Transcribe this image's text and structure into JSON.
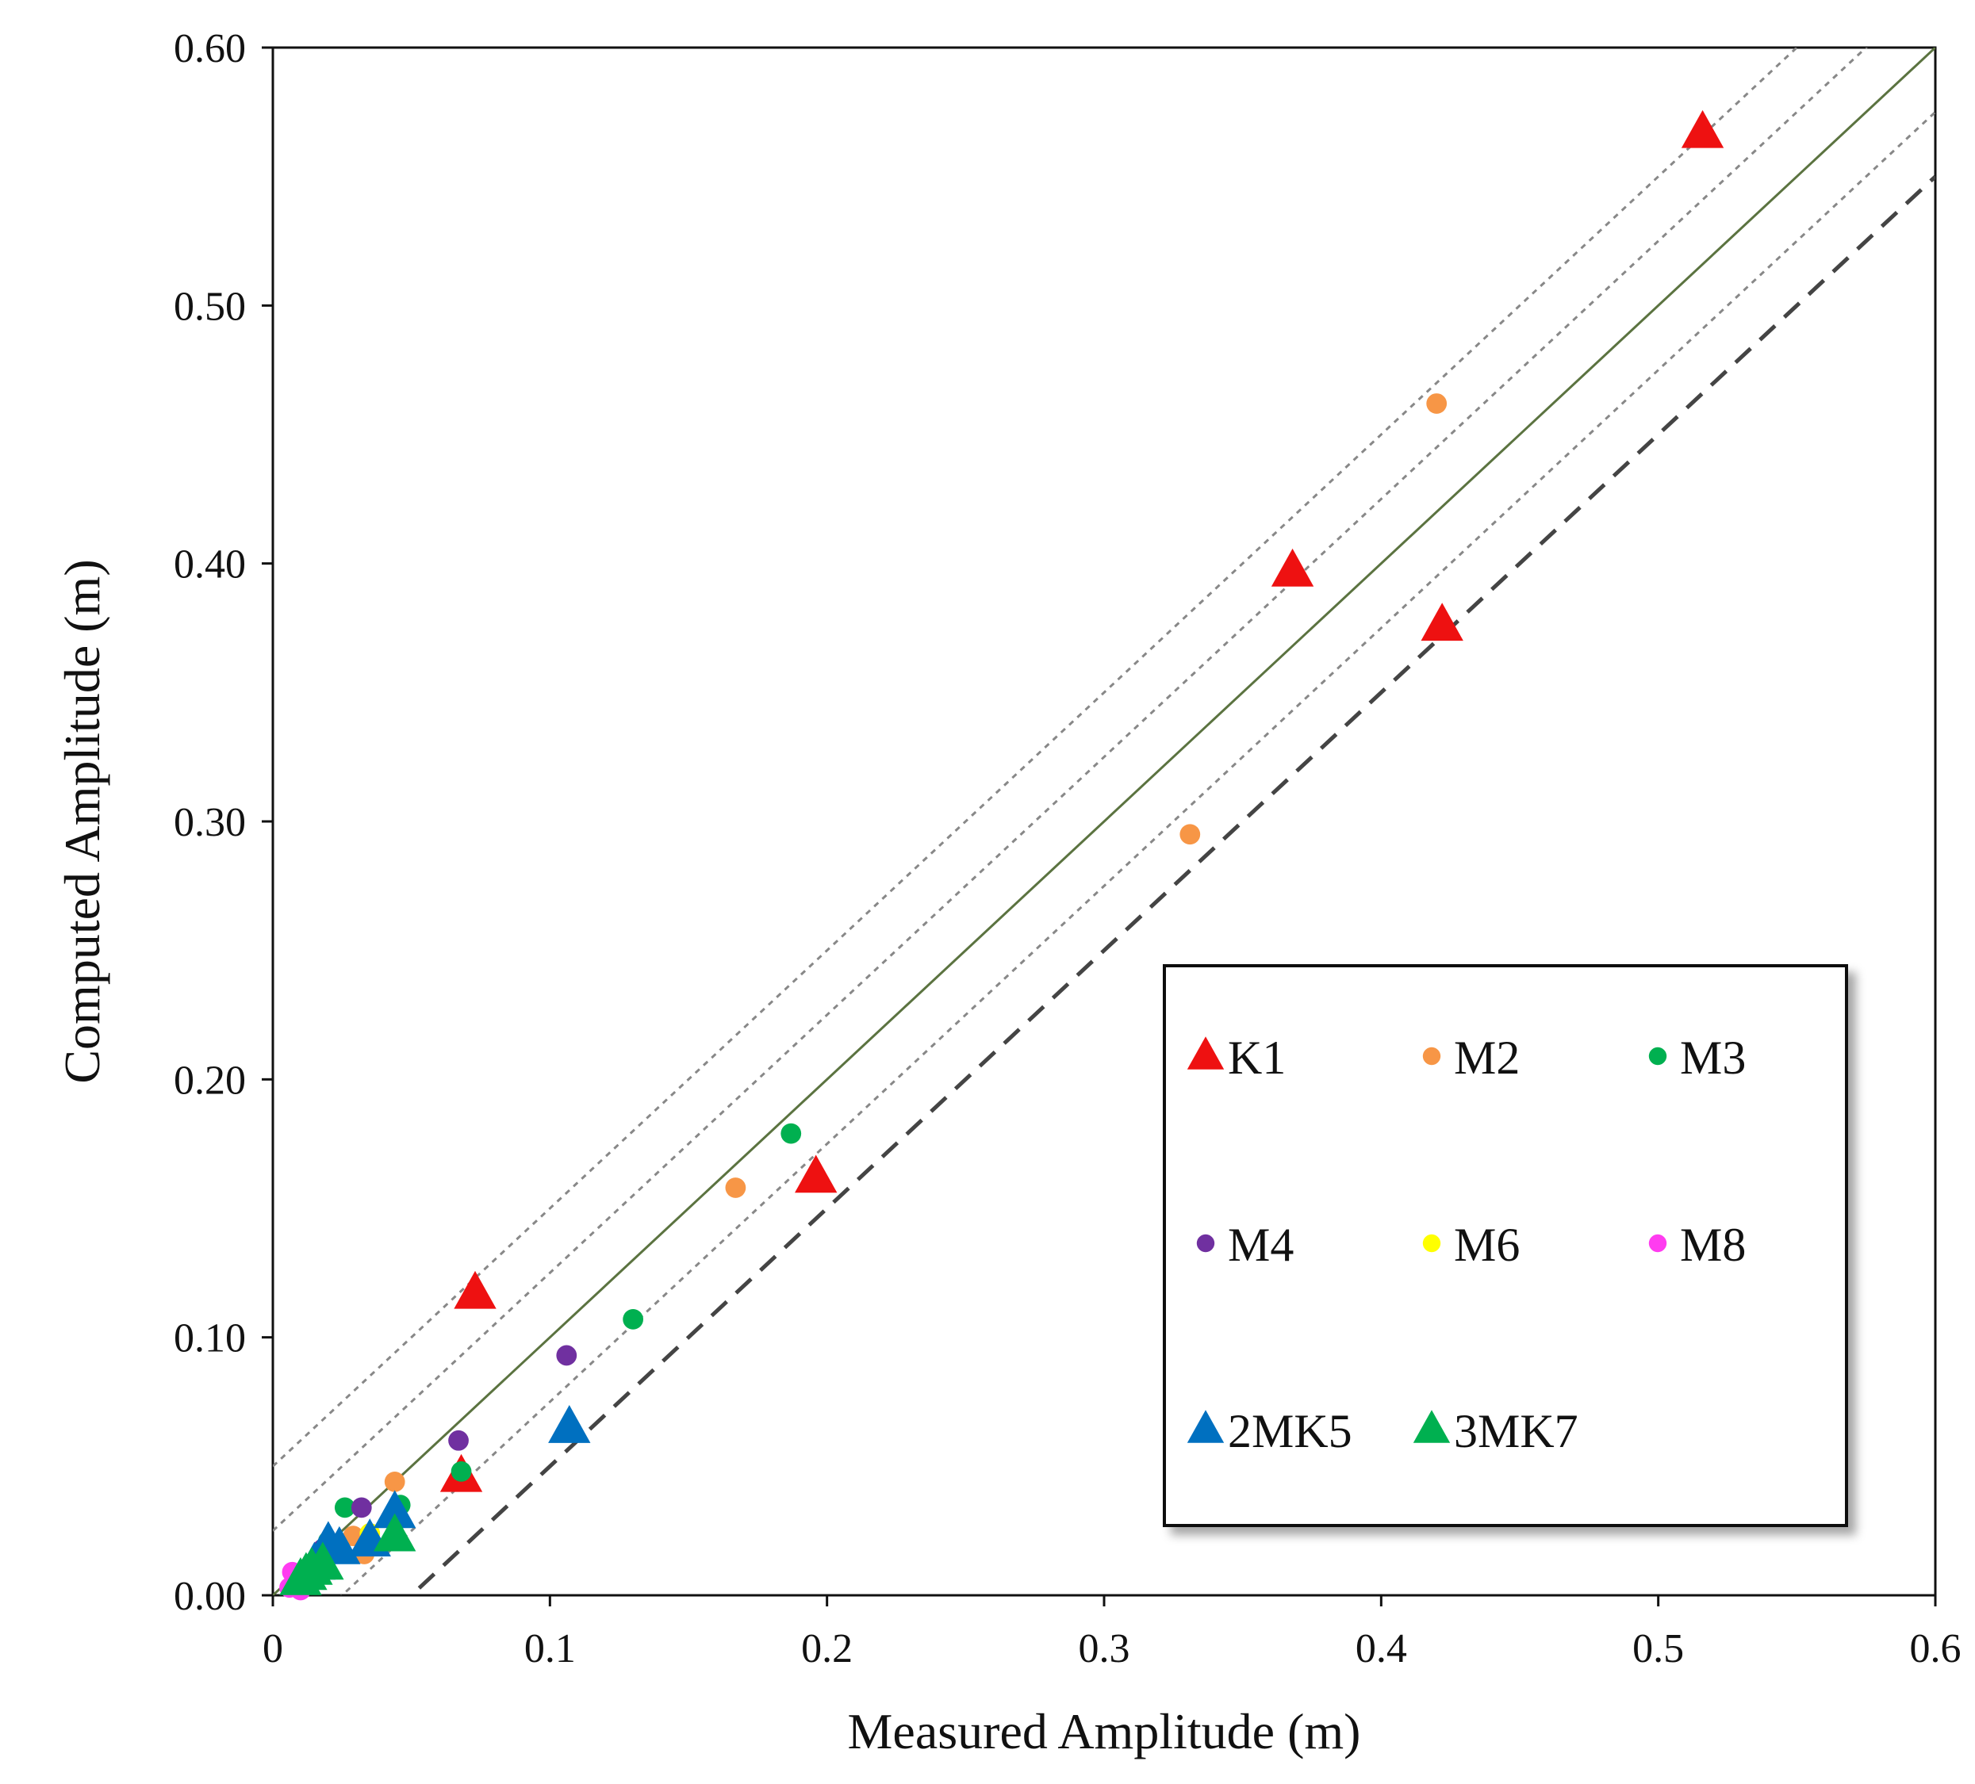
{
  "chart_data": {
    "type": "scatter",
    "xlabel": "Measured Amplitude (m)",
    "ylabel": "Computed Amplitude (m)",
    "xlim": [
      0,
      0.6
    ],
    "ylim": [
      0,
      0.6
    ],
    "x_ticks": [
      "0",
      "0.1",
      "0.2",
      "0.3",
      "0.4",
      "0.5",
      "0.6"
    ],
    "y_ticks": [
      "0.00",
      "0.10",
      "0.20",
      "0.30",
      "0.40",
      "0.50",
      "0.60"
    ],
    "grid": false,
    "legend_position": "lower-right",
    "reference_lines": [
      {
        "name": "1:1 line",
        "offset": 0,
        "style": "solid",
        "color": "#5b7340"
      },
      {
        "name": "+0.05 m",
        "offset": 0.05,
        "style": "dotted",
        "color": "#888888"
      },
      {
        "name": "+0.025 m",
        "offset": 0.025,
        "style": "dotted",
        "color": "#888888"
      },
      {
        "name": "-0.025 m",
        "offset": -0.025,
        "style": "dotted",
        "color": "#888888"
      },
      {
        "name": "-0.05 m",
        "offset": -0.05,
        "style": "dashed",
        "color": "#444444"
      }
    ],
    "series": [
      {
        "name": "K1",
        "marker": "triangle",
        "color": "#ee1111",
        "points": [
          [
            0.516,
            0.567
          ],
          [
            0.368,
            0.397
          ],
          [
            0.422,
            0.376
          ],
          [
            0.196,
            0.162
          ],
          [
            0.073,
            0.117
          ],
          [
            0.068,
            0.046
          ]
        ]
      },
      {
        "name": "M2",
        "marker": "circle",
        "color": "#f79646",
        "points": [
          [
            0.42,
            0.462
          ],
          [
            0.331,
            0.295
          ],
          [
            0.167,
            0.158
          ],
          [
            0.044,
            0.044
          ],
          [
            0.029,
            0.023
          ],
          [
            0.033,
            0.016
          ]
        ]
      },
      {
        "name": "M3",
        "marker": "circle",
        "color": "#00b050",
        "points": [
          [
            0.187,
            0.179
          ],
          [
            0.13,
            0.107
          ],
          [
            0.068,
            0.048
          ],
          [
            0.026,
            0.034
          ],
          [
            0.046,
            0.035
          ],
          [
            0.02,
            0.021
          ]
        ]
      },
      {
        "name": "M4",
        "marker": "circle",
        "color": "#7030a0",
        "points": [
          [
            0.106,
            0.093
          ],
          [
            0.067,
            0.06
          ],
          [
            0.032,
            0.034
          ],
          [
            0.018,
            0.018
          ]
        ]
      },
      {
        "name": "M6",
        "marker": "circle",
        "color": "#ffff00",
        "points": [
          [
            0.035,
            0.024
          ],
          [
            0.02,
            0.016
          ]
        ]
      },
      {
        "name": "M8",
        "marker": "circle",
        "color": "#ff3cf0",
        "points": [
          [
            0.007,
            0.009
          ],
          [
            0.006,
            0.003
          ],
          [
            0.01,
            0.002
          ]
        ]
      },
      {
        "name": "2MK5",
        "marker": "triangle",
        "color": "#0070c0",
        "points": [
          [
            0.107,
            0.065
          ],
          [
            0.044,
            0.032
          ],
          [
            0.035,
            0.021
          ],
          [
            0.024,
            0.018
          ],
          [
            0.02,
            0.02
          ],
          [
            0.015,
            0.012
          ]
        ]
      },
      {
        "name": "3MK7",
        "marker": "triangle",
        "color": "#00b050",
        "points": [
          [
            0.044,
            0.023
          ],
          [
            0.018,
            0.012
          ],
          [
            0.014,
            0.01
          ],
          [
            0.012,
            0.008
          ],
          [
            0.01,
            0.006
          ]
        ]
      }
    ]
  }
}
